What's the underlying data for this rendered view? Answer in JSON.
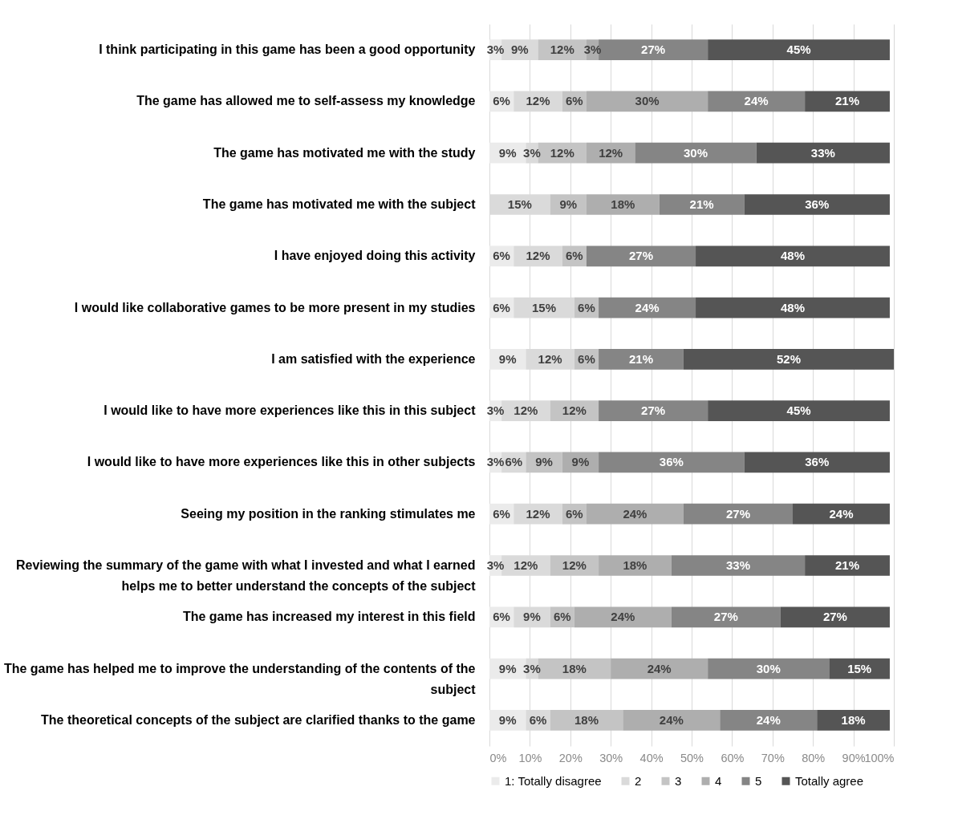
{
  "chart_data": {
    "type": "bar",
    "orientation": "horizontal",
    "stacked": true,
    "categories": [
      "I think participating in this game has been a good opportunity",
      "The game has allowed me to self-assess my knowledge",
      "The game has motivated me with the study",
      "The game has motivated me with the subject",
      "I have enjoyed doing this activity",
      "I would like collaborative games to be more present in my studies",
      "I am satisfied with the experience",
      "I would like to have more experiences like this in this subject",
      "I would like to have more experiences like this in other subjects",
      "Seeing my position in the ranking stimulates me",
      "Reviewing the summary of the game with what I invested and what I earned helps me to better understand the concepts of the subject",
      "The game has increased my interest in this field",
      "The game has helped me to improve the understanding of the contents of the subject",
      "The theoretical concepts of the subject are clarified thanks to the game"
    ],
    "series": [
      {
        "name": "1: Totally disagree",
        "color": "#ebebeb",
        "values": [
          3,
          6,
          9,
          null,
          6,
          6,
          9,
          3,
          3,
          6,
          3,
          6,
          9,
          9
        ],
        "value_labels": [
          "3%",
          "6%",
          "9%",
          null,
          "6%",
          "6%",
          "9%",
          "3%",
          "3%",
          "6%",
          "3%",
          "6%",
          "9%",
          "9%"
        ]
      },
      {
        "name": "2",
        "color": "#dadada",
        "values": [
          9,
          12,
          3,
          15,
          12,
          15,
          12,
          12,
          6,
          12,
          12,
          9,
          3,
          6
        ],
        "value_labels": [
          "9%",
          "12%",
          "3%",
          "15%",
          "12%",
          "15%",
          "12%",
          "12%",
          "6%",
          "12%",
          "12%",
          "9%",
          "3%",
          "6%"
        ]
      },
      {
        "name": "3",
        "color": "#c4c4c4",
        "values": [
          12,
          6,
          12,
          9,
          6,
          6,
          6,
          12,
          9,
          6,
          12,
          6,
          18,
          18
        ],
        "value_labels": [
          "12%",
          "6%",
          "12%",
          "9%",
          "6%",
          "6%",
          "6%",
          "12%",
          "9%",
          "6%",
          "12%",
          "6%",
          "18%",
          "18%"
        ]
      },
      {
        "name": "4",
        "color": "#aeaeae",
        "values": [
          3,
          30,
          12,
          18,
          null,
          null,
          null,
          null,
          9,
          24,
          18,
          24,
          24,
          24
        ],
        "value_labels": [
          "3%",
          "30%",
          "12%",
          "18%",
          null,
          null,
          null,
          null,
          "9%",
          "24%",
          "18%",
          "24%",
          "24%",
          "24%"
        ]
      },
      {
        "name": "5",
        "color": "#858585",
        "values": [
          27,
          24,
          30,
          21,
          27,
          24,
          21,
          27,
          36,
          27,
          33,
          27,
          30,
          24
        ],
        "value_labels": [
          "27%",
          "24%",
          "30%",
          "21%",
          "27%",
          "24%",
          "21%",
          "27%",
          "36%",
          "27%",
          "33%",
          "27%",
          "30%",
          "24%"
        ]
      },
      {
        "name": "Totally agree",
        "color": "#555555",
        "values": [
          45,
          21,
          33,
          36,
          48,
          48,
          52,
          45,
          36,
          24,
          21,
          27,
          15,
          18
        ],
        "value_labels": [
          "45%",
          "21%",
          "33%",
          "36%",
          "48%",
          "48%",
          "52%",
          "45%",
          "36%",
          "24%",
          "21%",
          "27%",
          "15%",
          "18%"
        ]
      }
    ],
    "xlim": [
      0,
      100
    ],
    "xticks": [
      {
        "value": 0,
        "label": "0%"
      },
      {
        "value": 10,
        "label": "10%"
      },
      {
        "value": 20,
        "label": "20%"
      },
      {
        "value": 30,
        "label": "30%"
      },
      {
        "value": 40,
        "label": "40%"
      },
      {
        "value": 50,
        "label": "50%"
      },
      {
        "value": 60,
        "label": "60%"
      },
      {
        "value": 70,
        "label": "70%"
      },
      {
        "value": 80,
        "label": "80%"
      },
      {
        "value": 90,
        "label": "90%"
      },
      {
        "value": 100,
        "label": "100%"
      }
    ],
    "grid": "x",
    "legend": "bottom"
  }
}
